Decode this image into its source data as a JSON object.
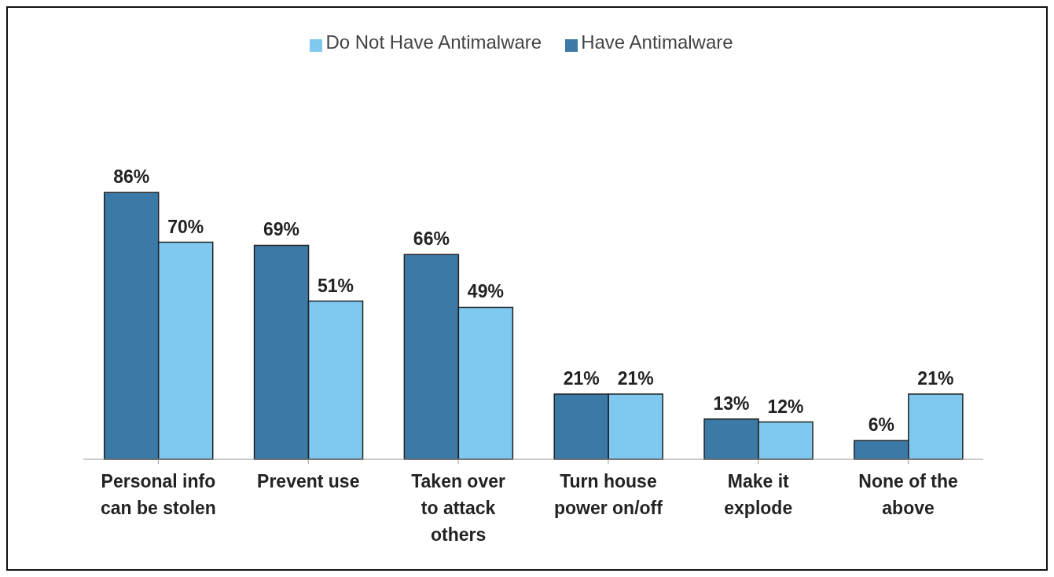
{
  "chart_data": {
    "type": "bar",
    "categories": [
      "Personal info\ncan be stolen",
      "Prevent use",
      "Taken over\nto attack\nothers",
      "Turn house\npower on/off",
      "Make it\nexplode",
      "None of the\nabove"
    ],
    "series": [
      {
        "name": "Have Antimalware",
        "color": "#3b79a7",
        "values": [
          86,
          69,
          66,
          21,
          13,
          6
        ],
        "value_labels": [
          "86%",
          "69%",
          "66%",
          "21%",
          "13%",
          "6%"
        ]
      },
      {
        "name": "Do Not Have Antimalware",
        "color": "#7fc8f0",
        "values": [
          70,
          51,
          49,
          21,
          12,
          21
        ],
        "value_labels": [
          "70%",
          "51%",
          "49%",
          "21%",
          "12%",
          "21%"
        ]
      }
    ],
    "legend": "top",
    "grid": false
  }
}
